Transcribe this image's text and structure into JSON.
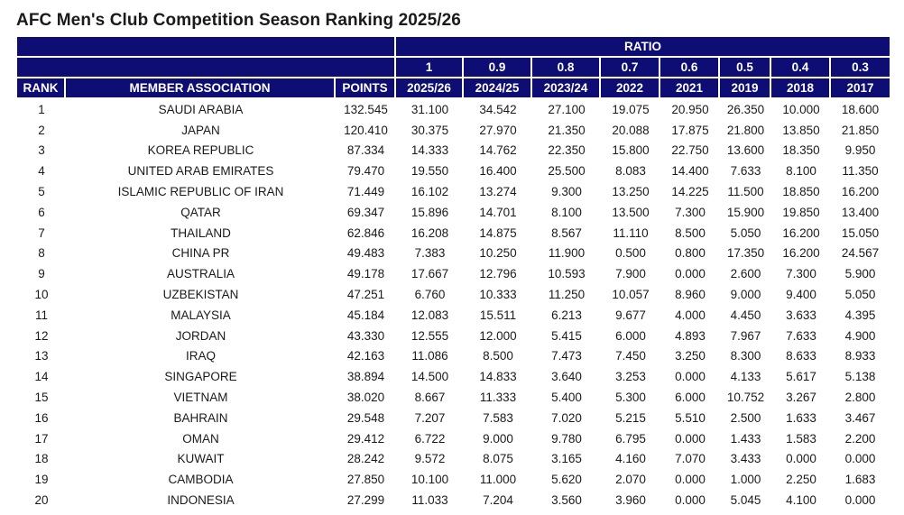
{
  "title": "AFC Men's Club Competition Season Ranking 2025/26",
  "table": {
    "ratio_label": "RATIO",
    "ratios": [
      "1",
      "0.9",
      "0.8",
      "0.7",
      "0.6",
      "0.5",
      "0.4",
      "0.3"
    ],
    "headers": [
      "RANK",
      "MEMBER ASSOCIATION",
      "POINTS",
      "2025/26",
      "2024/25",
      "2023/24",
      "2022",
      "2021",
      "2019",
      "2018",
      "2017"
    ],
    "rows": [
      [
        "1",
        "SAUDI ARABIA",
        "132.545",
        "31.100",
        "34.542",
        "27.100",
        "19.075",
        "20.950",
        "26.350",
        "10.000",
        "18.600"
      ],
      [
        "2",
        "JAPAN",
        "120.410",
        "30.375",
        "27.970",
        "21.350",
        "20.088",
        "17.875",
        "21.800",
        "13.850",
        "21.850"
      ],
      [
        "3",
        "KOREA REPUBLIC",
        "87.334",
        "14.333",
        "14.762",
        "22.350",
        "15.800",
        "22.750",
        "13.600",
        "18.350",
        "9.950"
      ],
      [
        "4",
        "UNITED ARAB EMIRATES",
        "79.470",
        "19.550",
        "16.400",
        "25.500",
        "8.083",
        "14.400",
        "7.633",
        "8.100",
        "11.350"
      ],
      [
        "5",
        "ISLAMIC REPUBLIC OF IRAN",
        "71.449",
        "16.102",
        "13.274",
        "9.300",
        "13.250",
        "14.225",
        "11.500",
        "18.850",
        "16.200"
      ],
      [
        "6",
        "QATAR",
        "69.347",
        "15.896",
        "14.701",
        "8.100",
        "13.500",
        "7.300",
        "15.900",
        "19.850",
        "13.400"
      ],
      [
        "7",
        "THAILAND",
        "62.846",
        "16.208",
        "14.875",
        "8.567",
        "11.110",
        "8.500",
        "5.050",
        "16.200",
        "15.050"
      ],
      [
        "8",
        "CHINA PR",
        "49.483",
        "7.383",
        "10.250",
        "11.900",
        "0.500",
        "0.800",
        "17.350",
        "16.200",
        "24.567"
      ],
      [
        "9",
        "AUSTRALIA",
        "49.178",
        "17.667",
        "12.796",
        "10.593",
        "7.900",
        "0.000",
        "2.600",
        "7.300",
        "5.900"
      ],
      [
        "10",
        "UZBEKISTAN",
        "47.251",
        "6.760",
        "10.333",
        "11.250",
        "10.057",
        "8.960",
        "9.000",
        "9.400",
        "5.050"
      ],
      [
        "11",
        "MALAYSIA",
        "45.184",
        "12.083",
        "15.511",
        "6.213",
        "9.677",
        "4.000",
        "4.450",
        "3.633",
        "4.395"
      ],
      [
        "12",
        "JORDAN",
        "43.330",
        "12.555",
        "12.000",
        "5.415",
        "6.000",
        "4.893",
        "7.967",
        "7.633",
        "4.900"
      ],
      [
        "13",
        "IRAQ",
        "42.163",
        "11.086",
        "8.500",
        "7.473",
        "7.450",
        "3.250",
        "8.300",
        "8.633",
        "8.933"
      ],
      [
        "14",
        "SINGAPORE",
        "38.894",
        "14.500",
        "14.833",
        "3.640",
        "3.253",
        "0.000",
        "4.133",
        "5.617",
        "5.138"
      ],
      [
        "15",
        "VIETNAM",
        "38.020",
        "8.667",
        "11.333",
        "5.400",
        "5.300",
        "6.000",
        "10.752",
        "3.267",
        "2.800"
      ],
      [
        "16",
        "BAHRAIN",
        "29.548",
        "7.207",
        "7.583",
        "7.020",
        "5.215",
        "5.510",
        "2.500",
        "1.633",
        "3.467"
      ],
      [
        "17",
        "OMAN",
        "29.412",
        "6.722",
        "9.000",
        "9.780",
        "6.795",
        "0.000",
        "1.433",
        "1.583",
        "2.200"
      ],
      [
        "18",
        "KUWAIT",
        "28.242",
        "9.572",
        "8.075",
        "3.165",
        "4.160",
        "7.070",
        "3.433",
        "0.000",
        "0.000"
      ],
      [
        "19",
        "CAMBODIA",
        "27.850",
        "10.100",
        "11.000",
        "5.620",
        "2.070",
        "0.000",
        "1.000",
        "2.250",
        "1.683"
      ],
      [
        "20",
        "INDONESIA",
        "27.299",
        "11.033",
        "7.204",
        "3.560",
        "3.960",
        "0.000",
        "5.045",
        "4.100",
        "0.000"
      ]
    ]
  },
  "colors": {
    "header_bg": "#0d0d73",
    "header_text": "#ffffff"
  }
}
